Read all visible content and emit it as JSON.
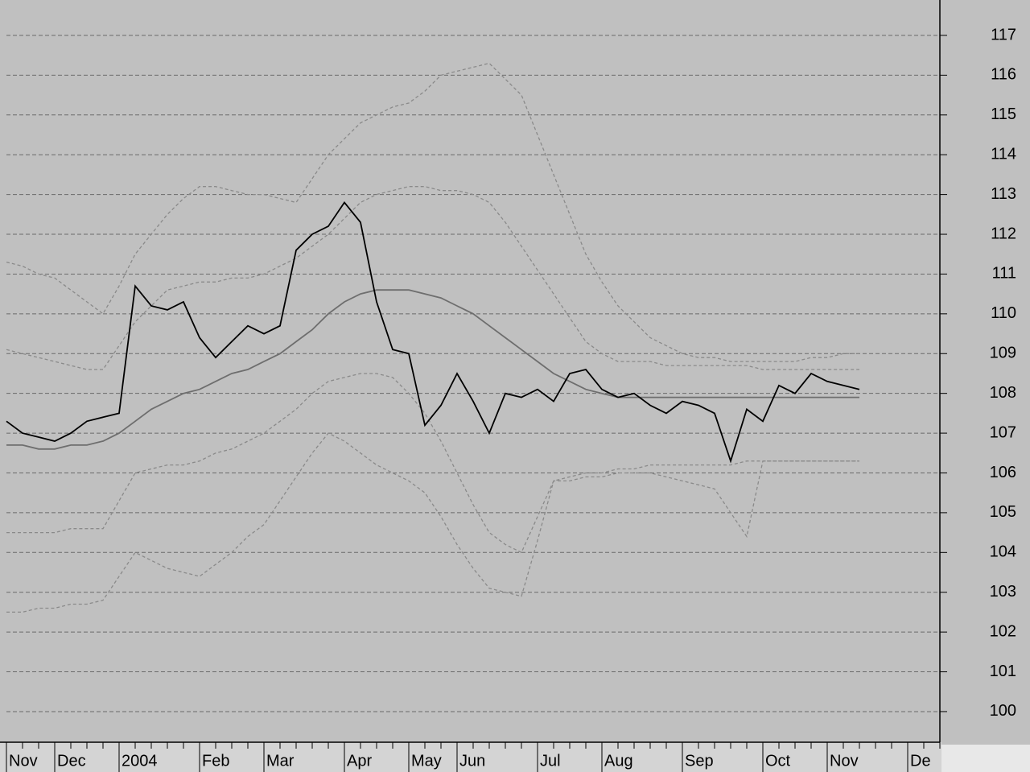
{
  "chart_data": {
    "type": "line",
    "categories": [
      "Nov",
      null,
      null,
      "Dec",
      null,
      null,
      null,
      "2004",
      null,
      null,
      null,
      null,
      "Feb",
      null,
      null,
      null,
      "Mar",
      null,
      null,
      null,
      null,
      "Apr",
      null,
      null,
      null,
      "May",
      null,
      null,
      "Jun",
      null,
      null,
      null,
      null,
      "Jul",
      null,
      null,
      null,
      "Aug",
      null,
      null,
      null,
      null,
      "Sep",
      null,
      null,
      null,
      null,
      "Oct",
      null,
      null,
      null,
      "Nov",
      null,
      null,
      null,
      null,
      "De",
      null,
      null
    ],
    "series": [
      {
        "color": "#8a8a8a",
        "dashed": true,
        "values": [
          111.3,
          111.2,
          111.0,
          110.9,
          110.6,
          110.3,
          110.0,
          110.7,
          111.5,
          112.0,
          112.5,
          112.9,
          113.2,
          113.2,
          113.1,
          113.0,
          113.0,
          112.9,
          112.8,
          113.4,
          114.0,
          114.4,
          114.8,
          115.0,
          115.2,
          115.3,
          115.6,
          116.0,
          116.1,
          116.2,
          116.3,
          115.9,
          115.5,
          114.5,
          113.5,
          112.5,
          111.5,
          110.8,
          110.2,
          109.8,
          109.4,
          109.2,
          109.0,
          108.9,
          108.9,
          108.8,
          108.8,
          108.8,
          108.8,
          108.8,
          108.9,
          108.9,
          109.0,
          109.0,
          null,
          null,
          null,
          null,
          null
        ]
      },
      {
        "color": "#8a8a8a",
        "dashed": true,
        "values": [
          102.5,
          102.5,
          102.6,
          102.6,
          102.7,
          102.7,
          102.8,
          103.4,
          104.0,
          103.8,
          103.6,
          103.5,
          103.4,
          103.7,
          104.0,
          104.4,
          104.7,
          105.3,
          105.9,
          106.5,
          107.0,
          106.8,
          106.5,
          106.2,
          106.0,
          105.8,
          105.5,
          104.9,
          104.2,
          103.6,
          103.1,
          103.0,
          102.9,
          104.3,
          105.8,
          105.8,
          105.9,
          105.9,
          106.0,
          106.0,
          106.0,
          105.9,
          105.8,
          105.7,
          105.6,
          105.0,
          104.4,
          106.3,
          106.3,
          106.3,
          106.3,
          106.3,
          106.3,
          106.3,
          null,
          null,
          null,
          null,
          null
        ]
      },
      {
        "color": "#8a8a8a",
        "dashed": true,
        "values": [
          109.1,
          109.0,
          108.9,
          108.8,
          108.7,
          108.6,
          108.6,
          109.2,
          109.8,
          110.2,
          110.6,
          110.7,
          110.8,
          110.8,
          110.9,
          110.9,
          111.0,
          111.2,
          111.4,
          111.7,
          112.0,
          112.4,
          112.8,
          113.0,
          113.1,
          113.2,
          113.2,
          113.1,
          113.1,
          113.0,
          112.8,
          112.3,
          111.7,
          111.1,
          110.5,
          109.9,
          109.3,
          109.0,
          108.8,
          108.8,
          108.8,
          108.7,
          108.7,
          108.7,
          108.7,
          108.7,
          108.7,
          108.6,
          108.6,
          108.6,
          108.6,
          108.6,
          108.6,
          108.6,
          null,
          null,
          null,
          null,
          null
        ]
      },
      {
        "color": "#8a8a8a",
        "dashed": true,
        "values": [
          104.5,
          104.5,
          104.5,
          104.5,
          104.6,
          104.6,
          104.6,
          105.3,
          106.0,
          106.1,
          106.2,
          106.2,
          106.3,
          106.5,
          106.6,
          106.8,
          107.0,
          107.3,
          107.6,
          108.0,
          108.3,
          108.4,
          108.5,
          108.5,
          108.4,
          108.0,
          107.5,
          106.8,
          106.0,
          105.2,
          104.5,
          104.2,
          104.0,
          104.9,
          105.8,
          105.9,
          106.0,
          106.0,
          106.1,
          106.1,
          106.2,
          106.2,
          106.2,
          106.2,
          106.2,
          106.2,
          106.3,
          106.3,
          106.3,
          106.3,
          106.3,
          106.3,
          106.3,
          106.3,
          null,
          null,
          null,
          null,
          null
        ]
      },
      {
        "color": "#6e6e6e",
        "dashed": false,
        "values": [
          106.7,
          106.7,
          106.6,
          106.6,
          106.7,
          106.7,
          106.8,
          107.0,
          107.3,
          107.6,
          107.8,
          108.0,
          108.1,
          108.3,
          108.5,
          108.6,
          108.8,
          109.0,
          109.3,
          109.6,
          110.0,
          110.3,
          110.5,
          110.6,
          110.6,
          110.6,
          110.5,
          110.4,
          110.2,
          110.0,
          109.7,
          109.4,
          109.1,
          108.8,
          108.5,
          108.3,
          108.1,
          108.0,
          107.9,
          107.9,
          107.9,
          107.9,
          107.9,
          107.9,
          107.9,
          107.9,
          107.9,
          107.9,
          107.9,
          107.9,
          107.9,
          107.9,
          107.9,
          107.9,
          null,
          null,
          null,
          null,
          null
        ]
      },
      {
        "color": "#000000",
        "dashed": false,
        "values": [
          107.3,
          107.0,
          106.9,
          106.8,
          107.0,
          107.3,
          107.4,
          107.5,
          110.7,
          110.2,
          110.1,
          110.3,
          109.4,
          108.9,
          109.3,
          109.7,
          109.5,
          109.7,
          111.6,
          112.0,
          112.2,
          112.8,
          112.3,
          110.3,
          109.1,
          109.0,
          107.2,
          107.7,
          108.5,
          107.8,
          107.0,
          108.0,
          107.9,
          108.1,
          107.8,
          108.5,
          108.6,
          108.1,
          107.9,
          108.0,
          107.7,
          107.5,
          107.8,
          107.7,
          107.5,
          106.3,
          107.6,
          107.3,
          108.2,
          108.0,
          108.5,
          108.3,
          108.2,
          108.1,
          null,
          null,
          null,
          null,
          null
        ]
      }
    ],
    "ylim": [
      99.23,
      117.89
    ],
    "yticks": [
      100,
      101,
      102,
      103,
      104,
      105,
      106,
      107,
      108,
      109,
      110,
      111,
      112,
      113,
      114,
      115,
      116,
      117
    ],
    "grid": true
  }
}
